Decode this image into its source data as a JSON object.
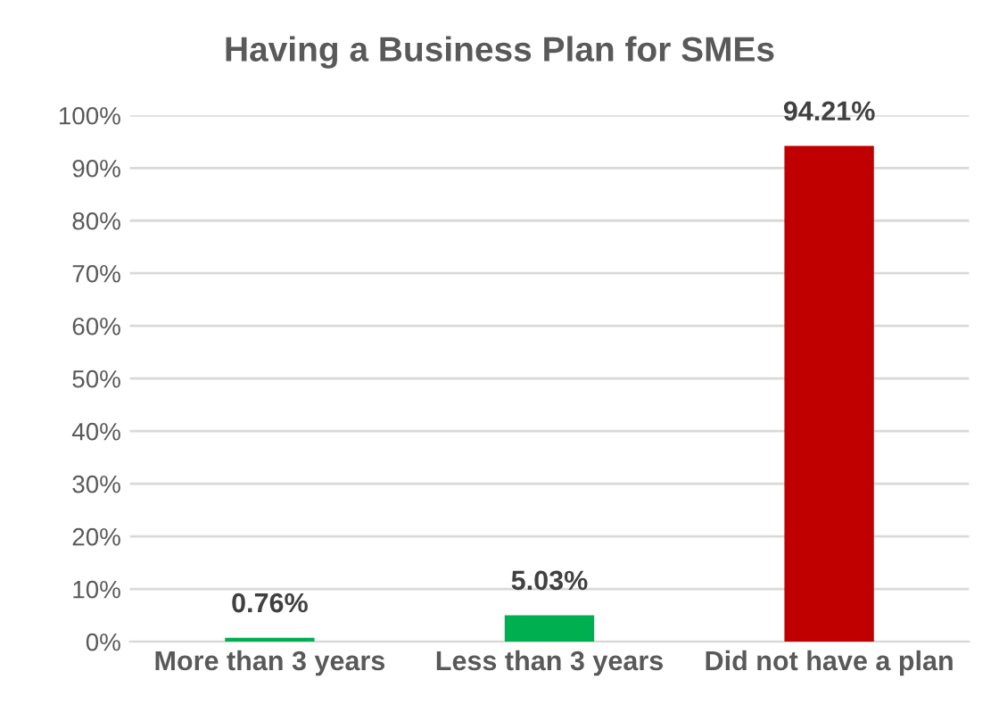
{
  "chart_data": {
    "type": "bar",
    "title": "Having a Business Plan for SMEs",
    "categories": [
      "More than 3 years",
      "Less than 3 years",
      "Did not have a plan"
    ],
    "values": [
      0.76,
      5.03,
      94.21
    ],
    "colors": [
      "#00b050",
      "#00b050",
      "#c00000"
    ],
    "value_labels": [
      "0.76%",
      "5.03%",
      "94.21%"
    ],
    "ylim": [
      0,
      100
    ],
    "yticks": [
      {
        "value": 0,
        "label": "0%"
      },
      {
        "value": 10,
        "label": "10%"
      },
      {
        "value": 20,
        "label": "20%"
      },
      {
        "value": 30,
        "label": "30%"
      },
      {
        "value": 40,
        "label": "40%"
      },
      {
        "value": 50,
        "label": "50%"
      },
      {
        "value": 60,
        "label": "60%"
      },
      {
        "value": 70,
        "label": "70%"
      },
      {
        "value": 80,
        "label": "80%"
      },
      {
        "value": 90,
        "label": "90%"
      },
      {
        "value": 100,
        "label": "100%"
      }
    ],
    "grid": "y",
    "legend": false
  }
}
